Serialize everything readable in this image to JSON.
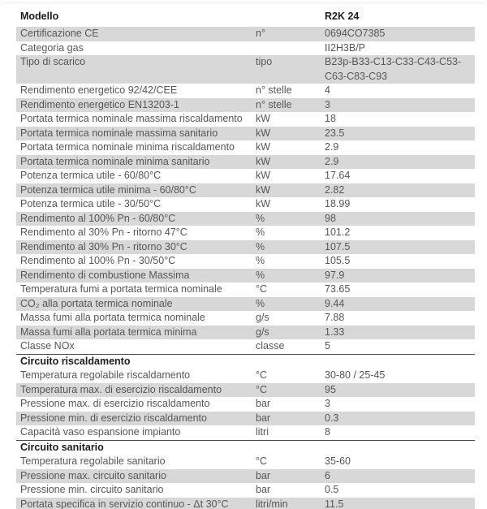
{
  "colors": {
    "row_shade": "#d8d8d8",
    "text": "#57575a",
    "heading": "#1c1c1e",
    "section_border": "#4a4a4c",
    "top_rule": "#ececec"
  },
  "table": {
    "header": {
      "label": "Modello",
      "value": "R2K 24"
    },
    "rows": [
      {
        "label": "Certificazione CE",
        "unit": "n°",
        "value": "0694CO7385",
        "shade": true
      },
      {
        "label": "Categoria gas",
        "unit": "",
        "value": "II2H3B/P",
        "shade": false
      },
      {
        "label": "Tipo di scarico",
        "unit": "tipo",
        "value": "B23p-B33-C13-C33-C43-C53-C63-C83-C93",
        "shade": true
      },
      {
        "label": "Rendimento energetico 92/42/CEE",
        "unit": "n° stelle",
        "value": "4",
        "shade": false
      },
      {
        "label": "Rendimento energetico EN13203-1",
        "unit": "n° stelle",
        "value": "3",
        "shade": true
      },
      {
        "label": "Portata termica nominale massima riscaldamento",
        "unit": "kW",
        "value": "18",
        "shade": false
      },
      {
        "label": "Portata termica nominale massima sanitario",
        "unit": "kW",
        "value": "23.5",
        "shade": true
      },
      {
        "label": "Portata termica nominale minima riscaldamento",
        "unit": "kW",
        "value": "2.9",
        "shade": false
      },
      {
        "label": "Portata termica nominale minima sanitario",
        "unit": "kW",
        "value": "2.9",
        "shade": true
      },
      {
        "label": "Potenza termica utile - 60/80°C",
        "unit": "kW",
        "value": "17.64",
        "shade": false
      },
      {
        "label": "Potenza termica utile minima - 60/80°C",
        "unit": "kW",
        "value": "2.82",
        "shade": true
      },
      {
        "label": "Potenza termica utile - 30/50°C",
        "unit": "kW",
        "value": "18.99",
        "shade": false
      },
      {
        "label": "Rendimento al 100% Pn - 60/80°C",
        "unit": "%",
        "value": "98",
        "shade": true
      },
      {
        "label": "Rendimento al 30% Pn - ritorno 47°C",
        "unit": "%",
        "value": "101.2",
        "shade": false
      },
      {
        "label": "Rendimento al 30% Pn - ritorno 30°C",
        "unit": "%",
        "value": "107.5",
        "shade": true
      },
      {
        "label": "Rendimento al 100% Pn - 30/50°C",
        "unit": "%",
        "value": "105.5",
        "shade": false
      },
      {
        "label": "Rendimento di combustione Massima",
        "unit": "%",
        "value": "97.9",
        "shade": true
      },
      {
        "label": "Temperatura fumi a portata termica nominale",
        "unit": "°C",
        "value": "73.65",
        "shade": false
      },
      {
        "label": "CO₂ alla portata termica nominale",
        "unit": "%",
        "value": "9.44",
        "shade": true
      },
      {
        "label": "Massa fumi alla portata termica nominale",
        "unit": "g/s",
        "value": "7.88",
        "shade": false
      },
      {
        "label": "Massa fumi alla portata termica minima",
        "unit": "g/s",
        "value": "1.33",
        "shade": true
      },
      {
        "label": "Classe NOx",
        "unit": "classe",
        "value": "5",
        "shade": false
      },
      {
        "section": "Circuito riscaldamento"
      },
      {
        "label": "Temperatura regolabile riscaldamento",
        "unit": "°C",
        "value": "30-80 / 25-45",
        "shade": false
      },
      {
        "label": "Temperatura max. di esercizio riscaldamento",
        "unit": "°C",
        "value": "95",
        "shade": true
      },
      {
        "label": "Pressione max. di esercizio riscaldamento",
        "unit": "bar",
        "value": "3",
        "shade": false
      },
      {
        "label": "Pressione min. di esercizio riscaldamento",
        "unit": "bar",
        "value": "0.3",
        "shade": true
      },
      {
        "label": "Capacità vaso espansione impianto",
        "unit": "litri",
        "value": "8",
        "shade": false
      },
      {
        "section": "Circuito sanitario"
      },
      {
        "label": "Temperatura regolabile sanitario",
        "unit": "°C",
        "value": "35-60",
        "shade": false
      },
      {
        "label": "Pressione max. circuito sanitario",
        "unit": "bar",
        "value": "6",
        "shade": true
      },
      {
        "label": "Pressione min. circuito sanitario",
        "unit": "bar",
        "value": "0.5",
        "shade": false
      },
      {
        "label": "Portata specifica in servizio continuo - Δt 30°C",
        "unit": "litri/min",
        "value": "11.5",
        "shade": true
      }
    ]
  }
}
